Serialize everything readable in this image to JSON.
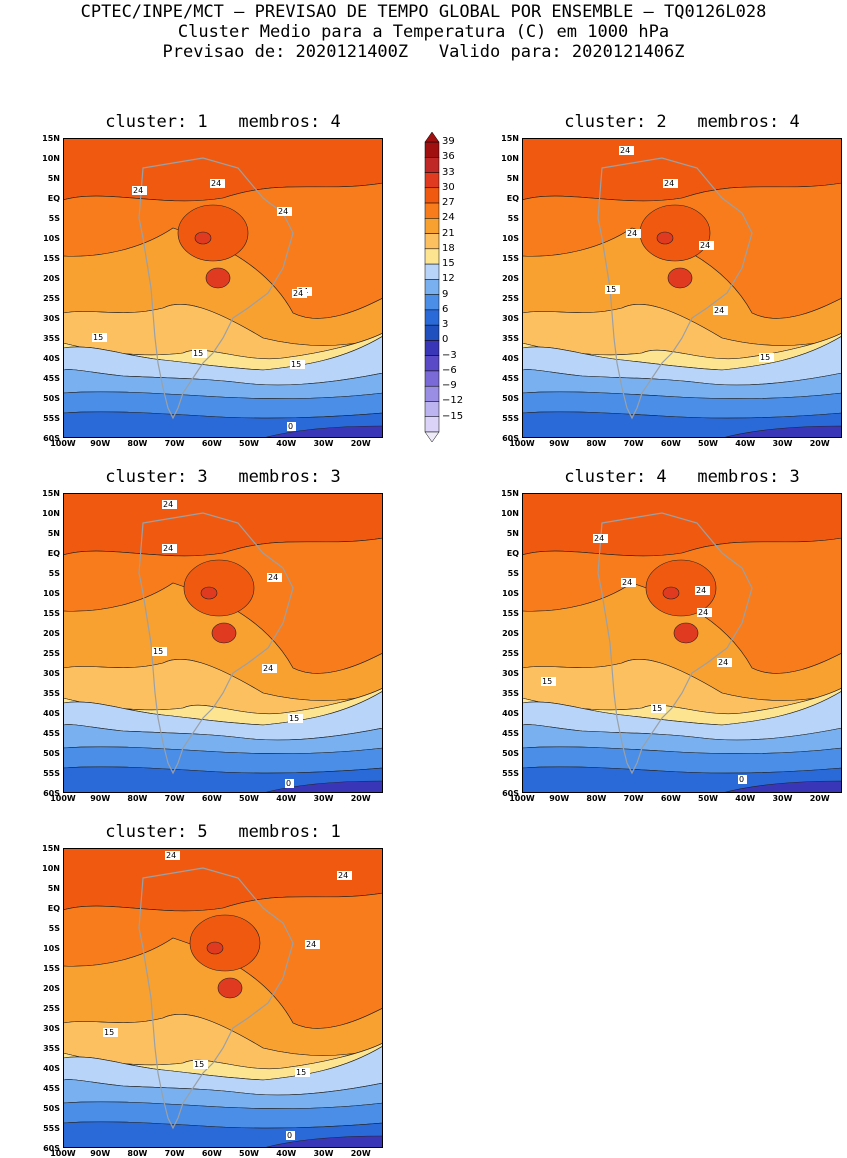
{
  "header": {
    "line1": "CPTEC/INPE/MCT — PREVISAO DE TEMPO GLOBAL POR ENSEMBLE — TQ0126L028",
    "line2": "Cluster Medio para a Temperatura (C) em 1000 hPa",
    "line3": "Previsao de: 2020121400Z   Valido para: 2020121406Z"
  },
  "lat_labels": [
    "15N",
    "10N",
    "5N",
    "EQ",
    "5S",
    "10S",
    "15S",
    "20S",
    "25S",
    "30S",
    "35S",
    "40S",
    "45S",
    "50S",
    "55S",
    "60S"
  ],
  "lon_labels": [
    "100W",
    "90W",
    "80W",
    "70W",
    "60W",
    "50W",
    "40W",
    "30W",
    "20W"
  ],
  "panels": [
    {
      "title": "cluster: 1   membros: 4",
      "contour_labels": [
        "24",
        "24",
        "24",
        "24",
        "24",
        "15",
        "15",
        "15",
        "0"
      ]
    },
    {
      "title": "cluster: 2   membros: 4",
      "contour_labels": [
        "24",
        "24",
        "24",
        "24",
        "15",
        "24",
        "15"
      ]
    },
    {
      "title": "cluster: 3   membros: 3",
      "contour_labels": [
        "24",
        "24",
        "24",
        "24",
        "15",
        "15",
        "0"
      ]
    },
    {
      "title": "cluster: 4   membros: 3",
      "contour_labels": [
        "24",
        "24",
        "24",
        "24",
        "24",
        "15",
        "15",
        "0"
      ]
    },
    {
      "title": "cluster: 5   membros: 1",
      "contour_labels": [
        "24",
        "24",
        "24",
        "15",
        "15",
        "15",
        "0"
      ]
    }
  ],
  "colorbar": {
    "levels": [
      "39",
      "36",
      "33",
      "30",
      "27",
      "24",
      "21",
      "18",
      "15",
      "12",
      "9",
      "6",
      "3",
      "0",
      "−3",
      "−6",
      "−9",
      "−12",
      "−15"
    ],
    "colors": [
      "#a01010",
      "#c02828",
      "#e03a20",
      "#f05a10",
      "#f87c1c",
      "#f8a030",
      "#fcc060",
      "#fce490",
      "#b8d4f8",
      "#78b0f0",
      "#4a8ee8",
      "#2a6ad8",
      "#2050c0",
      "#3a36b8",
      "#5a4ac8",
      "#7a6ad8",
      "#9a8ee4",
      "#bcb4f0",
      "#dcd4f8"
    ]
  }
}
